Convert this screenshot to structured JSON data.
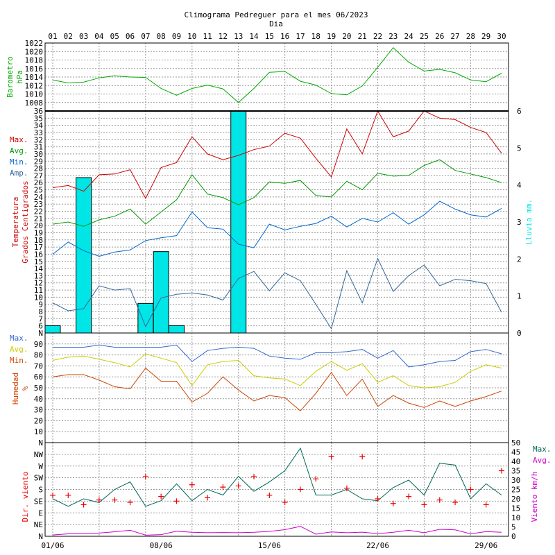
{
  "title": "Climograma Pedreguer para el mes 06/2023",
  "x_title": "Dia",
  "days": [
    "01",
    "02",
    "03",
    "04",
    "05",
    "06",
    "07",
    "08",
    "09",
    "10",
    "11",
    "12",
    "13",
    "14",
    "15",
    "16",
    "17",
    "18",
    "19",
    "20",
    "21",
    "22",
    "23",
    "24",
    "25",
    "26",
    "27",
    "28",
    "29",
    "30"
  ],
  "bottom_dates": [
    "01/06",
    "08/06",
    "15/06",
    "22/06",
    "29/06"
  ],
  "colors": {
    "max": "#cc0000",
    "avg": "#009900",
    "min": "#0066cc",
    "amp": "#336699",
    "rain": "#00e5e5",
    "pressure": "#00aa00",
    "hum_max": "#3366cc",
    "hum_avg": "#cccc00",
    "hum_min": "#cc4400",
    "wind_max": "#006655",
    "wind_avg": "#cc00cc",
    "wind_dir": "#ee0000"
  },
  "chart_data": [
    {
      "type": "line",
      "panel": "pressure",
      "ylabel": [
        "Barometro",
        "hPa"
      ],
      "ylim": [
        1006,
        1022
      ],
      "yticks": [
        "1008",
        "1010",
        "1012",
        "1014",
        "1016",
        "1018",
        "1020",
        "1022"
      ],
      "series": [
        {
          "values": [
            1013.3,
            1012.6,
            1012.8,
            1013.8,
            1014.3,
            1014.0,
            1013.9,
            1011.3,
            1009.7,
            1011.3,
            1012.1,
            1011.2,
            1008.0,
            1011.3,
            1015.1,
            1015.3,
            1013.0,
            1012.1,
            1010.1,
            1009.8,
            1011.9,
            1016.3,
            1020.9,
            1017.5,
            1015.4,
            1015.8,
            1015.0,
            1013.3,
            1012.9,
            1014.9
          ]
        }
      ]
    },
    {
      "type": "line",
      "panel": "temperature",
      "ylabel": [
        "Temperatura",
        "Grados Centigrados"
      ],
      "y2label": "Lluvia mm.",
      "ylim": [
        5,
        36
      ],
      "y2lim": [
        0,
        6
      ],
      "yticks": [
        "6",
        "7",
        "8",
        "9",
        "10",
        "11",
        "12",
        "13",
        "14",
        "15",
        "16",
        "17",
        "18",
        "19",
        "20",
        "21",
        "22",
        "23",
        "24",
        "25",
        "26",
        "27",
        "28",
        "29",
        "30",
        "31",
        "32",
        "33",
        "34",
        "35",
        "36"
      ],
      "y2ticks": [
        "0",
        "1",
        "2",
        "3",
        "4",
        "5",
        "6"
      ],
      "legend": [
        "Max.",
        "Avg.",
        "Min.",
        "Amp."
      ],
      "series": [
        {
          "name": "Max.",
          "values": [
            25.3,
            25.6,
            24.8,
            27.1,
            27.2,
            27.8,
            23.8,
            28.1,
            28.8,
            32.4,
            30.0,
            29.2,
            29.8,
            30.6,
            31.1,
            32.9,
            32.2,
            29.4,
            26.8,
            33.5,
            30.0,
            36.0,
            32.4,
            33.2,
            36.0,
            35.0,
            34.8,
            33.7,
            33.0,
            30.1
          ]
        },
        {
          "name": "Avg.",
          "values": [
            20.2,
            20.5,
            19.9,
            20.8,
            21.3,
            22.3,
            20.2,
            21.9,
            23.6,
            27.1,
            24.4,
            23.9,
            22.9,
            23.9,
            26.1,
            25.9,
            26.3,
            24.2,
            24.0,
            26.2,
            25.0,
            27.3,
            26.9,
            27.0,
            28.4,
            29.2,
            27.7,
            27.2,
            26.7,
            26.0
          ]
        },
        {
          "name": "Min.",
          "values": [
            16.0,
            17.7,
            16.5,
            15.7,
            16.3,
            16.6,
            17.9,
            18.3,
            18.6,
            21.9,
            19.7,
            19.5,
            17.4,
            16.9,
            20.2,
            19.4,
            19.9,
            20.3,
            21.3,
            19.8,
            21.0,
            20.5,
            21.8,
            20.2,
            21.5,
            23.4,
            22.3,
            21.5,
            21.2,
            22.4
          ]
        },
        {
          "name": "Amp.",
          "values": [
            9.2,
            8.1,
            8.4,
            11.6,
            11.0,
            11.2,
            5.9,
            9.9,
            10.4,
            10.6,
            10.3,
            9.6,
            12.6,
            13.6,
            10.9,
            13.4,
            12.3,
            9.0,
            5.6,
            13.7,
            9.2,
            15.4,
            10.8,
            13.0,
            14.5,
            11.6,
            12.5,
            12.3,
            11.9,
            7.9
          ]
        },
        {
          "name": "Lluvia",
          "axis": "y2",
          "type": "bar",
          "values": [
            0.2,
            0,
            4.2,
            0,
            0,
            0,
            0.8,
            2.2,
            0.2,
            0,
            0,
            0,
            6.0,
            0,
            0,
            0,
            0,
            0,
            0,
            0,
            0,
            0,
            0,
            0,
            0,
            0,
            0,
            0,
            0,
            0
          ]
        }
      ]
    },
    {
      "type": "line",
      "panel": "humidity",
      "ylabel": [
        "Humedad",
        "%"
      ],
      "ylim": [
        0,
        100
      ],
      "yticks": [
        "10",
        "20",
        "30",
        "40",
        "50",
        "60",
        "70",
        "80",
        "90",
        "N"
      ],
      "legend": [
        "Max.",
        "Avg.",
        "Min."
      ],
      "series": [
        {
          "name": "Max.",
          "values": [
            87,
            87,
            87,
            89,
            87,
            87,
            87,
            87,
            89,
            74,
            84,
            86,
            87,
            86,
            79,
            77,
            76,
            82,
            82,
            83,
            85,
            77,
            84,
            69,
            71,
            74,
            75,
            83,
            85,
            81
          ]
        },
        {
          "name": "Avg.",
          "values": [
            75,
            78,
            79,
            76,
            73,
            69,
            81,
            77,
            73,
            52,
            71,
            74,
            75,
            61,
            59,
            58,
            52,
            65,
            74,
            66,
            72,
            55,
            61,
            52,
            50,
            51,
            55,
            65,
            71,
            68
          ]
        },
        {
          "name": "Min.",
          "values": [
            60,
            62,
            62,
            57,
            51,
            49,
            68,
            56,
            56,
            37,
            45,
            60,
            48,
            38,
            43,
            41,
            29,
            45,
            64,
            43,
            58,
            33,
            43,
            36,
            32,
            38,
            33,
            38,
            42,
            47
          ]
        }
      ]
    },
    {
      "type": "line",
      "panel": "wind",
      "ylabel": "Dir. viento",
      "y2label": "Viento km/h",
      "ylim": [
        0,
        8
      ],
      "y2lim": [
        0,
        50
      ],
      "dir_labels": [
        "N",
        "NE",
        "E",
        "SE",
        "S",
        "SW",
        "W",
        "NW",
        "N"
      ],
      "y2ticks": [
        "0",
        "5",
        "10",
        "15",
        "20",
        "25",
        "30",
        "35",
        "40",
        "45",
        "50"
      ],
      "legend": [
        "Max.",
        "Avg."
      ],
      "series": [
        {
          "name": "Max.",
          "values": [
            20,
            16,
            20,
            18,
            25,
            29,
            16,
            19,
            28,
            19,
            25,
            22,
            32,
            24,
            29,
            35,
            47,
            22,
            22,
            25,
            20,
            19,
            26,
            30,
            22,
            39,
            38,
            20,
            28,
            22
          ]
        },
        {
          "name": "Avg.",
          "values": [
            0.7,
            1.3,
            1.3,
            1.7,
            2.4,
            3.2,
            0.6,
            0.9,
            2.7,
            2.1,
            1.9,
            2.0,
            1.9,
            2.1,
            2.6,
            3.5,
            5.3,
            1.1,
            2.3,
            1.9,
            2.2,
            1.4,
            2.1,
            3.2,
            1.9,
            3.7,
            3.4,
            1.3,
            2.5,
            2.1
          ]
        },
        {
          "name": "Dir.",
          "type": "scatter",
          "values": [
            3.5,
            3.5,
            2.7,
            3.1,
            3.1,
            2.9,
            5.1,
            3.4,
            3.0,
            4.4,
            3.3,
            4.2,
            4.3,
            5.1,
            3.5,
            2.9,
            4.0,
            4.9,
            6.8,
            4.1,
            6.8,
            3.2,
            2.8,
            3.4,
            2.7,
            3.1,
            2.9,
            4.0,
            2.7,
            5.6
          ]
        }
      ]
    }
  ]
}
